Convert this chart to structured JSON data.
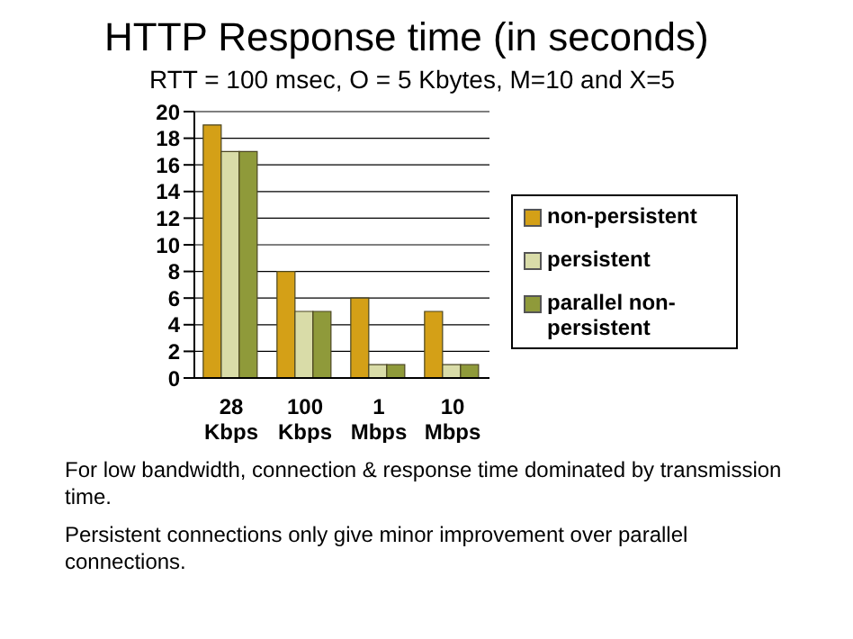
{
  "chart_data": {
    "type": "bar",
    "title": "HTTP Response time (in seconds)",
    "subtitle": "RTT = 100 msec, O = 5 Kbytes, M=10 and X=5",
    "categories": [
      "28 Kbps",
      "100 Kbps",
      "1 Mbps",
      "10 Mbps"
    ],
    "series": [
      {
        "name": "non-persistent",
        "color": "#d4a017",
        "values": [
          19,
          8,
          6,
          5
        ]
      },
      {
        "name": "persistent",
        "color": "#d9dca8",
        "values": [
          17,
          5,
          1,
          1
        ]
      },
      {
        "name": "parallel non-persistent",
        "color": "#8f9a3a",
        "values": [
          17,
          5,
          1,
          1
        ]
      }
    ],
    "ylim": [
      0,
      20
    ],
    "yticks": [
      0,
      2,
      4,
      6,
      8,
      10,
      12,
      14,
      16,
      18,
      20
    ],
    "grid": "y",
    "legend": "right",
    "annotations": [
      "For low bandwidth, connection & response time  dominated by transmission time.",
      "Persistent connections only give minor improvement over parallel connections."
    ]
  }
}
